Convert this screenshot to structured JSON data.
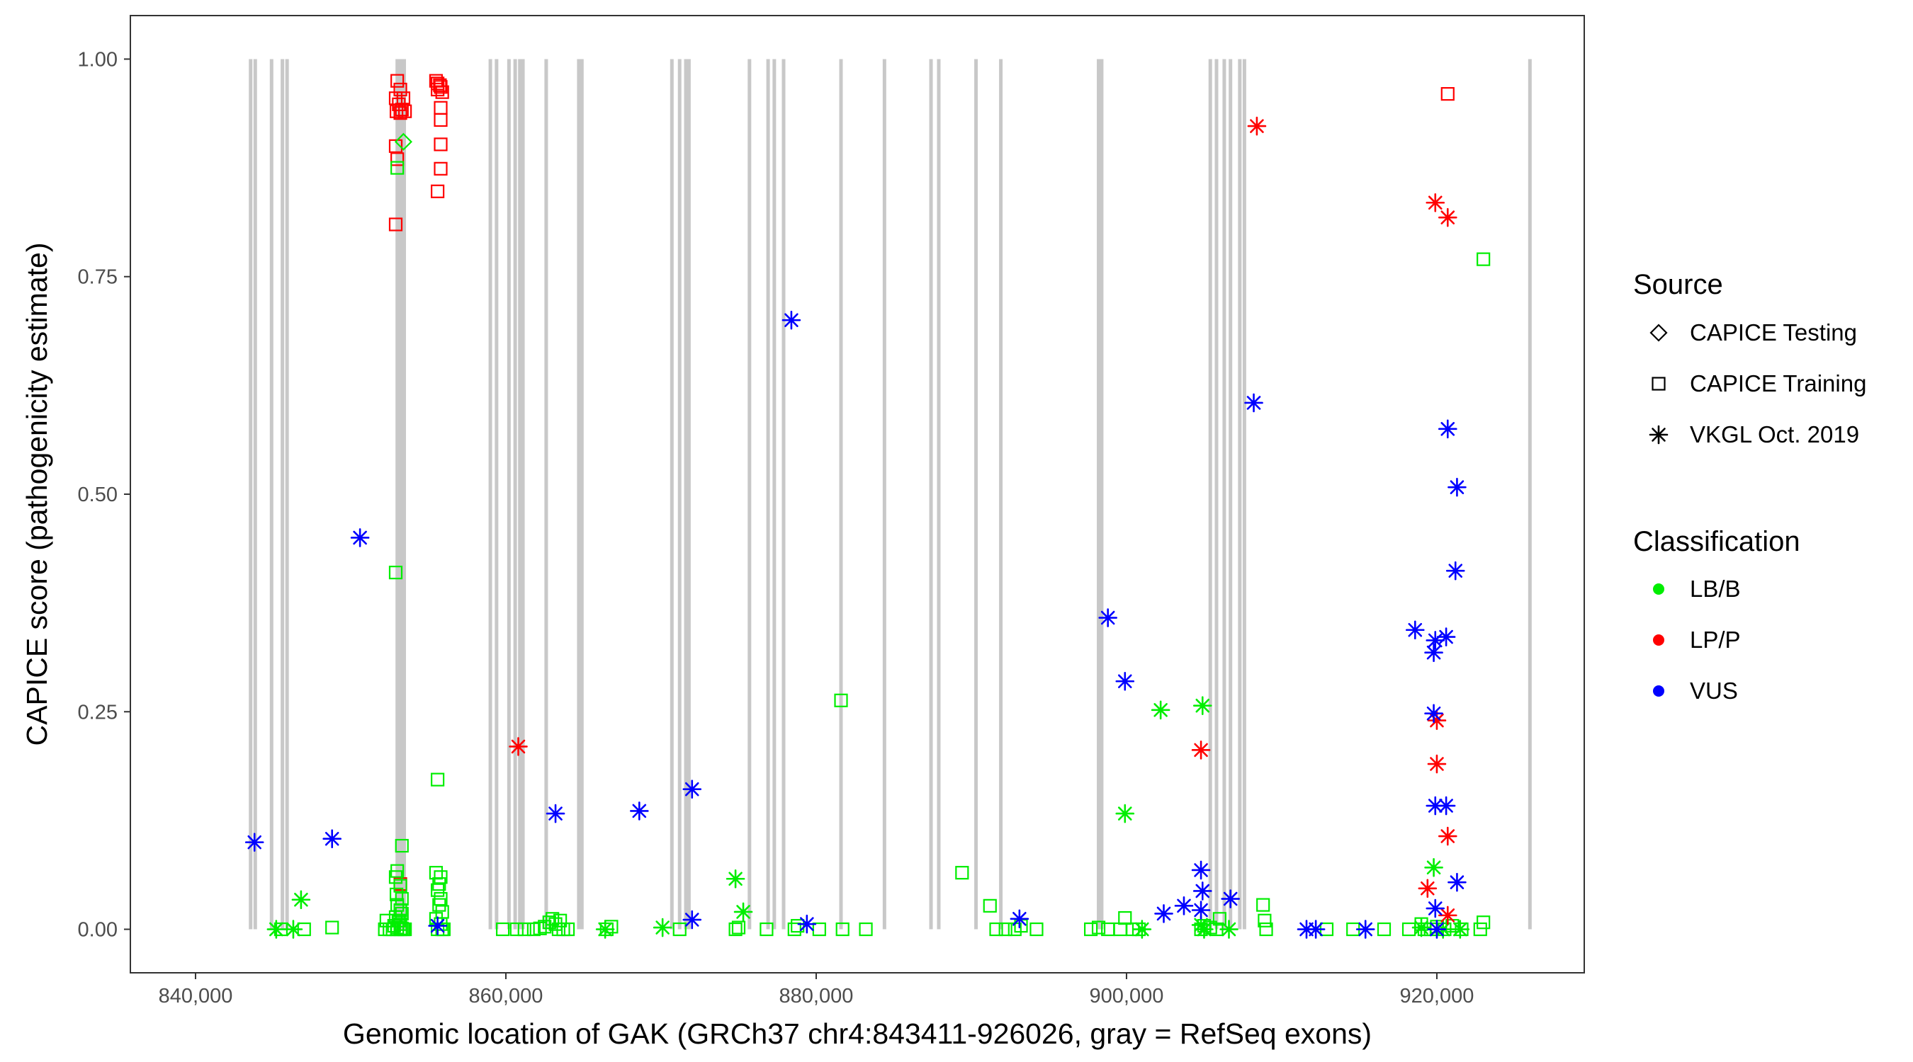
{
  "colors": {
    "LB/B": "#00ee00",
    "LP/P": "#ff0000",
    "VUS": "#0000ff",
    "exon": "#c8c8c8",
    "frame": "#333333",
    "tick": "#333333",
    "tick_text": "#4d4d4d"
  },
  "chart_data": {
    "type": "scatter",
    "title": "",
    "xlabel": "Genomic location of GAK (GRCh37 chr4:843411-926026, gray = RefSeq exons)",
    "ylabel": "CAPICE score (pathogenicity estimate)",
    "xlim": [
      835800,
      929500
    ],
    "ylim": [
      -0.05,
      1.05
    ],
    "x_ticks": [
      840000,
      860000,
      880000,
      900000,
      920000
    ],
    "x_tick_labels": [
      "840,000",
      "860,000",
      "880,000",
      "900,000",
      "920,000"
    ],
    "y_ticks": [
      0,
      0.25,
      0.5,
      0.75,
      1.0
    ],
    "y_tick_labels": [
      "0.00",
      "0.25",
      "0.50",
      "0.75",
      "1.00"
    ],
    "exon_range": [
      0,
      1
    ],
    "exons": [
      843550,
      843850,
      844900,
      845600,
      845900,
      853000,
      853150,
      853300,
      853450,
      859000,
      859400,
      860200,
      860600,
      860900,
      861100,
      862600,
      864700,
      864900,
      870700,
      871200,
      871600,
      871800,
      875700,
      876900,
      877300,
      877900,
      881600,
      884400,
      887400,
      887900,
      890300,
      891900,
      898200,
      898400,
      905400,
      905800,
      906300,
      906700,
      907300,
      907600,
      926000
    ],
    "legend": {
      "source_title": "Source",
      "source_items": [
        {
          "label": "CAPICE Testing",
          "shape": "diamond"
        },
        {
          "label": "CAPICE Training",
          "shape": "square"
        },
        {
          "label": "VKGL Oct. 2019",
          "shape": "asterisk"
        }
      ],
      "class_title": "Classification",
      "class_items": [
        {
          "label": "LB/B",
          "color_key": "LB/B"
        },
        {
          "label": "LP/P",
          "color_key": "LP/P"
        },
        {
          "label": "VUS",
          "color_key": "VUS"
        }
      ]
    },
    "series": [
      {
        "name": "CAPICE Training / LP/P",
        "shape": "square",
        "class": "LP/P",
        "points": [
          [
            853000,
            0.975
          ],
          [
            853200,
            0.965
          ],
          [
            852900,
            0.955
          ],
          [
            853400,
            0.955
          ],
          [
            853100,
            0.948
          ],
          [
            853300,
            0.942
          ],
          [
            852950,
            0.94
          ],
          [
            853200,
            0.938
          ],
          [
            853500,
            0.94
          ],
          [
            852900,
            0.9
          ],
          [
            853000,
            0.885
          ],
          [
            852900,
            0.81
          ],
          [
            853200,
            0.052
          ],
          [
            855500,
            0.975
          ],
          [
            855600,
            0.972
          ],
          [
            855750,
            0.97
          ],
          [
            855800,
            0.968
          ],
          [
            855600,
            0.965
          ],
          [
            855900,
            0.962
          ],
          [
            855800,
            0.944
          ],
          [
            855800,
            0.93
          ],
          [
            855800,
            0.902
          ],
          [
            855800,
            0.874
          ],
          [
            855600,
            0.848
          ],
          [
            920700,
            0.96
          ]
        ]
      },
      {
        "name": "CAPICE Training / LB/B",
        "shape": "square",
        "class": "LB/B",
        "points": [
          [
            853000,
            0.875
          ],
          [
            852900,
            0.41
          ],
          [
            853300,
            0.096
          ],
          [
            853000,
            0.067
          ],
          [
            852900,
            0.06
          ],
          [
            853200,
            0.05
          ],
          [
            852950,
            0.04
          ],
          [
            853300,
            0.035
          ],
          [
            853000,
            0.028
          ],
          [
            853200,
            0.022
          ],
          [
            853300,
            0.018
          ],
          [
            852900,
            0.014
          ],
          [
            853100,
            0.01
          ],
          [
            853200,
            0.006
          ],
          [
            852800,
            0.004
          ],
          [
            853000,
            0.002
          ],
          [
            853300,
            0.001
          ],
          [
            852500,
            0.0
          ],
          [
            852700,
            0.0
          ],
          [
            853000,
            0.0
          ],
          [
            853200,
            0.0
          ],
          [
            853400,
            0.0
          ],
          [
            853500,
            0.0
          ],
          [
            852300,
            0.01
          ],
          [
            852200,
            0.0
          ],
          [
            855600,
            0.172
          ],
          [
            855500,
            0.065
          ],
          [
            855800,
            0.06
          ],
          [
            855700,
            0.052
          ],
          [
            855600,
            0.045
          ],
          [
            855800,
            0.035
          ],
          [
            855700,
            0.028
          ],
          [
            855900,
            0.02
          ],
          [
            855500,
            0.012
          ],
          [
            855800,
            0.006
          ],
          [
            855600,
            0.0
          ],
          [
            855900,
            0.0
          ],
          [
            856000,
            0.0
          ],
          [
            845500,
            0.0
          ],
          [
            847000,
            0.0
          ],
          [
            848800,
            0.002
          ],
          [
            859800,
            0.0
          ],
          [
            860700,
            0.0
          ],
          [
            861200,
            0.0
          ],
          [
            861800,
            0.0
          ],
          [
            862200,
            0.001
          ],
          [
            862500,
            0.003
          ],
          [
            862800,
            0.008
          ],
          [
            863000,
            0.012
          ],
          [
            863200,
            0.006
          ],
          [
            863400,
            0.0
          ],
          [
            863500,
            0.01
          ],
          [
            863700,
            0.0
          ],
          [
            864000,
            0.0
          ],
          [
            866500,
            0.0
          ],
          [
            866800,
            0.003
          ],
          [
            871200,
            0.0
          ],
          [
            874800,
            0.0
          ],
          [
            875000,
            0.002
          ],
          [
            876800,
            0.0
          ],
          [
            878600,
            0.0
          ],
          [
            878800,
            0.004
          ],
          [
            880200,
            0.0
          ],
          [
            881600,
            0.263
          ],
          [
            881700,
            0.0
          ],
          [
            883200,
            0.0
          ],
          [
            889400,
            0.065
          ],
          [
            891200,
            0.027
          ],
          [
            891600,
            0.0
          ],
          [
            892200,
            0.0
          ],
          [
            892800,
            0.0
          ],
          [
            893200,
            0.004
          ],
          [
            894200,
            0.0
          ],
          [
            897700,
            0.0
          ],
          [
            898200,
            0.002
          ],
          [
            898800,
            0.0
          ],
          [
            899600,
            0.0
          ],
          [
            899900,
            0.013
          ],
          [
            900400,
            0.0
          ],
          [
            900800,
            0.0
          ],
          [
            904800,
            0.0
          ],
          [
            905000,
            0.004
          ],
          [
            905400,
            0.002
          ],
          [
            905800,
            0.0
          ],
          [
            906000,
            0.012
          ],
          [
            908800,
            0.028
          ],
          [
            908900,
            0.01
          ],
          [
            909000,
            0.0
          ],
          [
            912900,
            0.0
          ],
          [
            914600,
            0.0
          ],
          [
            916600,
            0.0
          ],
          [
            918200,
            0.0
          ],
          [
            919000,
            0.006
          ],
          [
            919200,
            0.0
          ],
          [
            919600,
            0.0
          ],
          [
            920000,
            0.003
          ],
          [
            920500,
            0.0
          ],
          [
            921000,
            0.004
          ],
          [
            921600,
            0.0
          ],
          [
            922800,
            0.0
          ],
          [
            923000,
            0.008
          ],
          [
            923000,
            0.77
          ]
        ]
      },
      {
        "name": "CAPICE Testing / LB/B",
        "shape": "diamond",
        "class": "LB/B",
        "points": [
          [
            853400,
            0.905
          ]
        ]
      },
      {
        "name": "VKGL / LB/B",
        "shape": "asterisk",
        "class": "LB/B",
        "points": [
          [
            846800,
            0.034
          ],
          [
            845200,
            0.0
          ],
          [
            846300,
            0.0
          ],
          [
            866400,
            0.0
          ],
          [
            870100,
            0.002
          ],
          [
            874800,
            0.058
          ],
          [
            875300,
            0.02
          ],
          [
            902200,
            0.252
          ],
          [
            904900,
            0.257
          ],
          [
            899900,
            0.133
          ],
          [
            904800,
            0.005
          ],
          [
            905000,
            0.0
          ],
          [
            906600,
            0.0
          ],
          [
            901000,
            0.0
          ],
          [
            919800,
            0.071
          ],
          [
            919000,
            0.002
          ],
          [
            920400,
            0.0
          ],
          [
            921500,
            0.0
          ]
        ]
      },
      {
        "name": "VKGL / LP/P",
        "shape": "asterisk",
        "class": "LP/P",
        "points": [
          [
            860800,
            0.21
          ],
          [
            904800,
            0.206
          ],
          [
            908400,
            0.923
          ],
          [
            919900,
            0.835
          ],
          [
            920700,
            0.818
          ],
          [
            920000,
            0.24
          ],
          [
            920000,
            0.19
          ],
          [
            920700,
            0.107
          ],
          [
            919400,
            0.047
          ],
          [
            920700,
            0.016
          ]
        ]
      },
      {
        "name": "VKGL / VUS",
        "shape": "asterisk",
        "class": "VUS",
        "points": [
          [
            843800,
            0.1
          ],
          [
            848800,
            0.104
          ],
          [
            850600,
            0.45
          ],
          [
            855600,
            0.004
          ],
          [
            863200,
            0.133
          ],
          [
            868600,
            0.136
          ],
          [
            872000,
            0.161
          ],
          [
            872000,
            0.011
          ],
          [
            878400,
            0.7
          ],
          [
            879400,
            0.006
          ],
          [
            893100,
            0.012
          ],
          [
            898800,
            0.358
          ],
          [
            899900,
            0.285
          ],
          [
            902400,
            0.018
          ],
          [
            903700,
            0.027
          ],
          [
            904800,
            0.068
          ],
          [
            904900,
            0.044
          ],
          [
            904800,
            0.022
          ],
          [
            906700,
            0.035
          ],
          [
            908200,
            0.605
          ],
          [
            911600,
            0.0
          ],
          [
            912200,
            0.0
          ],
          [
            915400,
            0.0
          ],
          [
            918600,
            0.344
          ],
          [
            919800,
            0.318
          ],
          [
            919900,
            0.332
          ],
          [
            920600,
            0.336
          ],
          [
            920700,
            0.575
          ],
          [
            921300,
            0.508
          ],
          [
            921200,
            0.412
          ],
          [
            919800,
            0.248
          ],
          [
            919900,
            0.142
          ],
          [
            920600,
            0.142
          ],
          [
            921300,
            0.054
          ],
          [
            919900,
            0.024
          ],
          [
            920000,
            0.0
          ]
        ]
      }
    ]
  }
}
